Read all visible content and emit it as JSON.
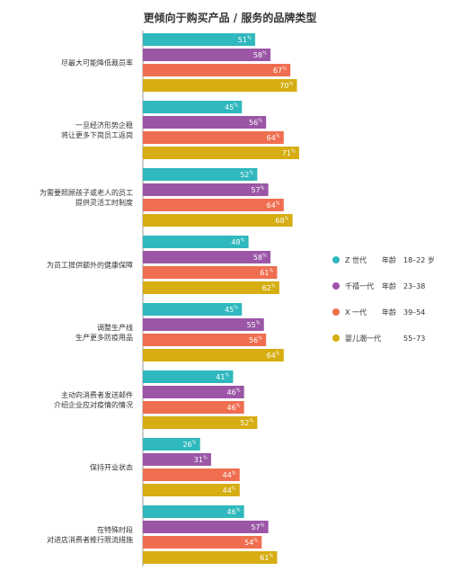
{
  "chart_data": {
    "type": "bar",
    "orientation": "horizontal",
    "title": "更倾向于购买产品 / 服务的品牌类型",
    "value_suffix": "%",
    "categories": [
      [
        "尽最大可能降低裁员率"
      ],
      [
        "一旦经济形势企稳",
        "将让更多下岗员工返岗"
      ],
      [
        "为需要照顾孩子或老人的员工",
        "提供灵活工时制度"
      ],
      [
        "为员工提供额外的健康保障"
      ],
      [
        "调整生产线",
        "生产更多防疫用品"
      ],
      [
        "主动向消费者发送邮件",
        "介绍企业应对疫情的情况"
      ],
      [
        "保持开业状态"
      ],
      [
        "在特殊时段",
        "对进店消费者推行限流措施"
      ]
    ],
    "series": [
      {
        "name": "Z 世代",
        "age_label": "年龄",
        "age_range": "18–22 岁",
        "color": "#2fb8bd",
        "values": [
          51,
          45,
          52,
          48,
          45,
          41,
          26,
          46
        ]
      },
      {
        "name": "千禧一代",
        "age_label": "年龄",
        "age_range": "23–38",
        "color": "#9b56a6",
        "values": [
          58,
          56,
          57,
          58,
          55,
          46,
          31,
          57
        ]
      },
      {
        "name": "X 一代",
        "age_label": "年龄",
        "age_range": "39–54",
        "color": "#ef6e50",
        "values": [
          67,
          64,
          64,
          61,
          56,
          46,
          44,
          54
        ]
      },
      {
        "name": "婴儿潮一代",
        "age_label": "",
        "age_range": "55–73",
        "color": "#d6ad12",
        "values": [
          70,
          71,
          68,
          62,
          64,
          52,
          44,
          61
        ]
      }
    ],
    "xlim": [
      0,
      100
    ],
    "grid": false,
    "legend_position": "right"
  }
}
